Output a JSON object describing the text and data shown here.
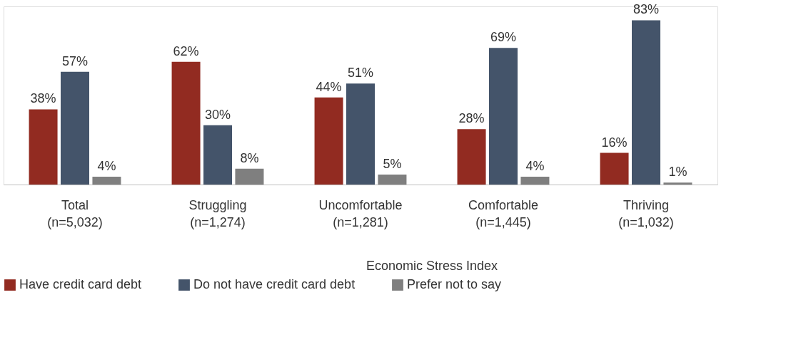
{
  "chart_data": {
    "type": "bar",
    "categories": [
      "Total\n(n=5,032)",
      "Struggling\n(n=1,274)",
      "Uncomfortable\n(n=1,281)",
      "Comfortable\n(n=1,445)",
      "Thriving\n(n=1,032)"
    ],
    "xlabel": "Economic Stress Index",
    "series": [
      {
        "name": "Have credit card debt",
        "color": "#922b21",
        "values": [
          38,
          62,
          44,
          28,
          16
        ],
        "value_labels": [
          "38%",
          "62%",
          "44%",
          "28%",
          "16%"
        ]
      },
      {
        "name": "Do not have credit card debt",
        "color": "#44546a",
        "values": [
          57,
          30,
          51,
          69,
          83
        ],
        "value_labels": [
          "57%",
          "30%",
          "51%",
          "69%",
          "83%"
        ]
      },
      {
        "name": "Prefer not to say",
        "color": "#7f7f7f",
        "values": [
          4,
          8,
          5,
          4,
          1
        ],
        "value_labels": [
          "4%",
          "8%",
          "5%",
          "4%",
          "1%"
        ]
      }
    ],
    "legend": "bottom",
    "grid": false,
    "tick_labels": "x"
  }
}
